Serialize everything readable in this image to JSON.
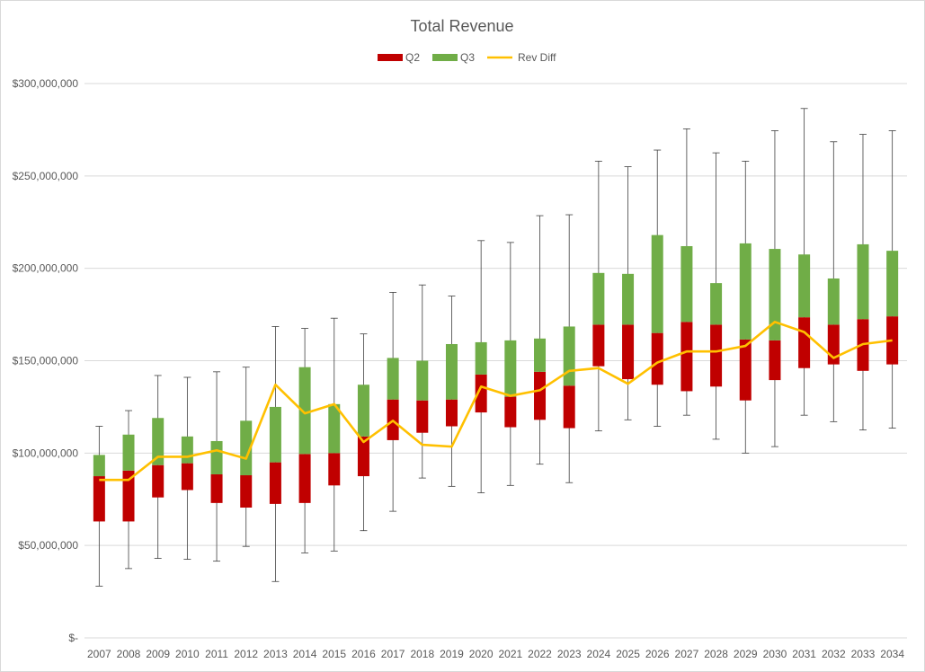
{
  "chart_data": {
    "type": "bar",
    "title": "Total Revenue",
    "xlabel": "",
    "ylabel": "",
    "ylim": [
      0,
      300000000
    ],
    "grid": true,
    "legend_position": "top",
    "y_ticks": [
      0,
      50000000,
      100000000,
      150000000,
      200000000,
      250000000,
      300000000
    ],
    "y_tick_labels": [
      "$-",
      "$50,000,000",
      "$100,000,000",
      "$150,000,000",
      "$200,000,000",
      "$250,000,000",
      "$300,000,000"
    ],
    "categories": [
      "2007",
      "2008",
      "2009",
      "2010",
      "2011",
      "2012",
      "2013",
      "2014",
      "2015",
      "2016",
      "2017",
      "2018",
      "2019",
      "2020",
      "2021",
      "2022",
      "2023",
      "2024",
      "2025",
      "2026",
      "2027",
      "2028",
      "2029",
      "2030",
      "2031",
      "2032",
      "2033",
      "2034"
    ],
    "series": [
      {
        "name": "Q2",
        "type": "floating-bar",
        "color": "#c00000",
        "low": [
          63000000,
          63000000,
          76000000,
          80000000,
          73000000,
          70500000,
          72500000,
          73000000,
          82500000,
          87500000,
          107000000,
          111000000,
          114500000,
          122000000,
          114000000,
          118000000,
          113500000,
          147000000,
          140000000,
          137000000,
          133500000,
          136000000,
          128500000,
          139500000,
          146000000,
          148000000,
          144500000,
          148000000
        ],
        "high": [
          87500000,
          90500000,
          93500000,
          94500000,
          88500000,
          88000000,
          95000000,
          99500000,
          100000000,
          109000000,
          129000000,
          128500000,
          129000000,
          142500000,
          130500000,
          144000000,
          136500000,
          169500000,
          169500000,
          165000000,
          171000000,
          169500000,
          161500000,
          161000000,
          173500000,
          169500000,
          172500000,
          174000000
        ]
      },
      {
        "name": "Q3",
        "type": "floating-bar",
        "color": "#70ad47",
        "low": [
          87500000,
          90500000,
          93500000,
          94500000,
          88500000,
          88000000,
          95000000,
          99500000,
          100000000,
          109000000,
          129000000,
          128500000,
          129000000,
          142500000,
          130500000,
          144000000,
          136500000,
          169500000,
          169500000,
          165000000,
          171000000,
          169500000,
          161500000,
          161000000,
          173500000,
          169500000,
          172500000,
          174000000
        ],
        "high": [
          99000000,
          110000000,
          119000000,
          109000000,
          106500000,
          117500000,
          125000000,
          146500000,
          126500000,
          137000000,
          151500000,
          150000000,
          159000000,
          160000000,
          161000000,
          162000000,
          168500000,
          197500000,
          197000000,
          218000000,
          212000000,
          192000000,
          213500000,
          210500000,
          207500000,
          194500000,
          213000000,
          209500000
        ]
      },
      {
        "name": "Rev Diff",
        "type": "line",
        "color": "#ffc000",
        "values": [
          85500000,
          85500000,
          98000000,
          98000000,
          101500000,
          97000000,
          137000000,
          121500000,
          126500000,
          106000000,
          117500000,
          104500000,
          103500000,
          136000000,
          131000000,
          134000000,
          144500000,
          146000000,
          137500000,
          149000000,
          155000000,
          155000000,
          158000000,
          171000000,
          165500000,
          151500000,
          159000000,
          161000000
        ]
      }
    ],
    "whiskers": {
      "color": "#404040",
      "min": [
        28000000,
        37500000,
        43000000,
        42500000,
        41500000,
        49500000,
        30500000,
        46000000,
        47000000,
        58000000,
        68500000,
        86500000,
        82000000,
        78500000,
        82500000,
        94000000,
        84000000,
        112000000,
        118000000,
        114500000,
        120500000,
        107500000,
        100000000,
        103500000,
        120500000,
        117000000,
        112500000,
        113500000
      ],
      "max": [
        114500000,
        123000000,
        142000000,
        141000000,
        144000000,
        146500000,
        168500000,
        167500000,
        173000000,
        164500000,
        187000000,
        191000000,
        185000000,
        215000000,
        214000000,
        228500000,
        229000000,
        258000000,
        255000000,
        264000000,
        275500000,
        262500000,
        258000000,
        274500000,
        286500000,
        268500000,
        272500000,
        274500000
      ]
    }
  }
}
